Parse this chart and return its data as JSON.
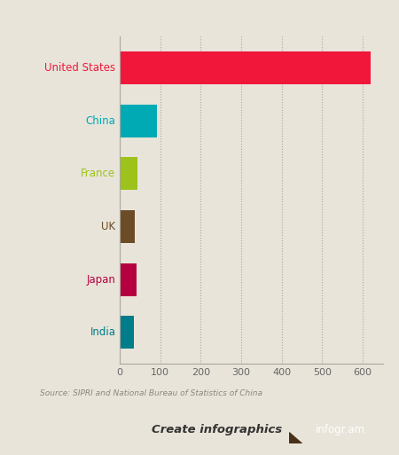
{
  "categories": [
    "United States",
    "China",
    "France",
    "UK",
    "Japan",
    "India"
  ],
  "values": [
    619,
    91,
    43,
    38,
    41,
    36
  ],
  "bar_colors": [
    "#f0173a",
    "#00aab5",
    "#9dc21b",
    "#6b4c26",
    "#b5003f",
    "#007c8a"
  ],
  "label_colors": [
    "#f0173a",
    "#00aab5",
    "#9dc21b",
    "#6b4c26",
    "#b5003f",
    "#007c8a"
  ],
  "background_color": "#e8e4d9",
  "source_text": "Source: SIPRI and National Bureau of Statistics of China",
  "footer_text": "Create infographics",
  "footer_brand": "infogr.am",
  "xlim": [
    0,
    650
  ],
  "xticks": [
    0,
    100,
    200,
    300,
    400,
    500,
    600
  ],
  "bar_height": 0.62,
  "grid_color": "#aaa89e",
  "axis_line_color": "#aaa89e"
}
